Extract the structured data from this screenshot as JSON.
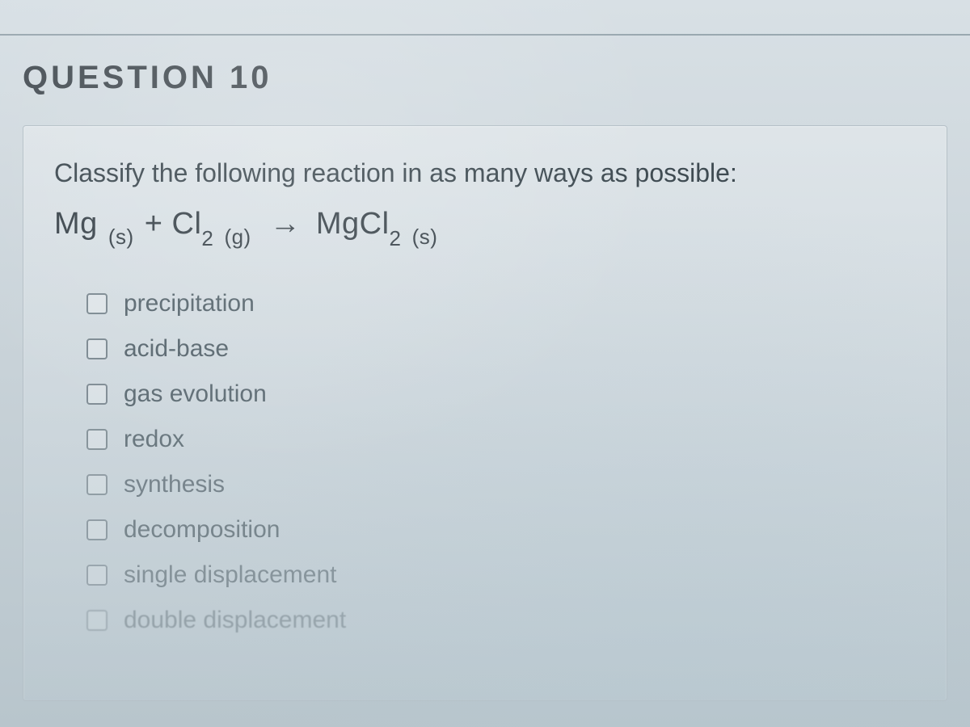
{
  "page": {
    "background_gradient_top": "#d8e0e5",
    "background_gradient_mid": "#c8d2d8",
    "background_gradient_bottom": "#b8c5cc"
  },
  "question": {
    "title": "QUESTION 10",
    "title_color": "#4a5258",
    "title_fontsize": 40,
    "title_letterspacing": 4,
    "prompt": "Classify the following reaction in as many ways as possible:",
    "prompt_color": "#3f4b52",
    "prompt_fontsize": 32,
    "equation": {
      "reactant1": "Mg",
      "reactant1_state": "(s)",
      "plus": "+",
      "reactant2_base": "Cl",
      "reactant2_sub": "2",
      "reactant2_state": "(g)",
      "arrow": "→",
      "product_base": "MgCl",
      "product_sub": "2",
      "product_state": "(s)",
      "fontsize": 38,
      "color": "#3d474e"
    },
    "options": [
      {
        "label": "precipitation",
        "checked": false,
        "fade": ""
      },
      {
        "label": "acid-base",
        "checked": false,
        "fade": ""
      },
      {
        "label": "gas evolution",
        "checked": false,
        "fade": "fade-1"
      },
      {
        "label": "redox",
        "checked": false,
        "fade": "fade-2"
      },
      {
        "label": "synthesis",
        "checked": false,
        "fade": "fade-3"
      },
      {
        "label": "decomposition",
        "checked": false,
        "fade": "fade-3"
      },
      {
        "label": "single displacement",
        "checked": false,
        "fade": "fade-4"
      },
      {
        "label": "double displacement",
        "checked": false,
        "fade": "fade-5"
      }
    ],
    "option_fontsize": 30,
    "option_color": "#5a6870",
    "checkbox_border": "#7d8a92"
  }
}
